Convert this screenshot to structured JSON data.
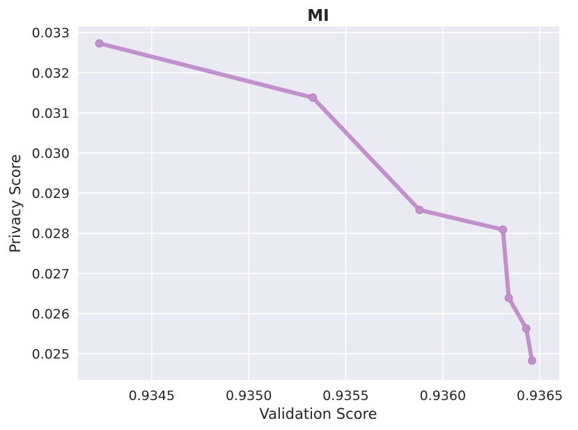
{
  "chart_data": {
    "type": "line",
    "title": "MI",
    "xlabel": "Validation Score",
    "ylabel": "Privacy Score",
    "xlim": [
      0.93412,
      0.9366
    ],
    "ylim": [
      0.02435,
      0.03315
    ],
    "xticks": [
      0.9345,
      0.935,
      0.9355,
      0.936,
      0.9365
    ],
    "xtick_labels": [
      "0.9345",
      "0.9350",
      "0.9355",
      "0.9360",
      "0.9365"
    ],
    "yticks": [
      0.025,
      0.026,
      0.027,
      0.028,
      0.029,
      0.03,
      0.031,
      0.032,
      0.033
    ],
    "ytick_labels": [
      "0.025",
      "0.026",
      "0.027",
      "0.028",
      "0.029",
      "0.030",
      "0.031",
      "0.032",
      "0.033"
    ],
    "grid": true,
    "series": [
      {
        "color": "#c291cc",
        "x": [
          0.93423,
          0.93533,
          0.93588,
          0.93631,
          0.93634,
          0.93643,
          0.93646
        ],
        "y": [
          0.03273,
          0.03138,
          0.02858,
          0.02809,
          0.02639,
          0.02563,
          0.02483
        ]
      }
    ],
    "colors": {
      "plot_background": "#eaeaf2",
      "grid": "#ffffff",
      "text": "#262626"
    }
  }
}
